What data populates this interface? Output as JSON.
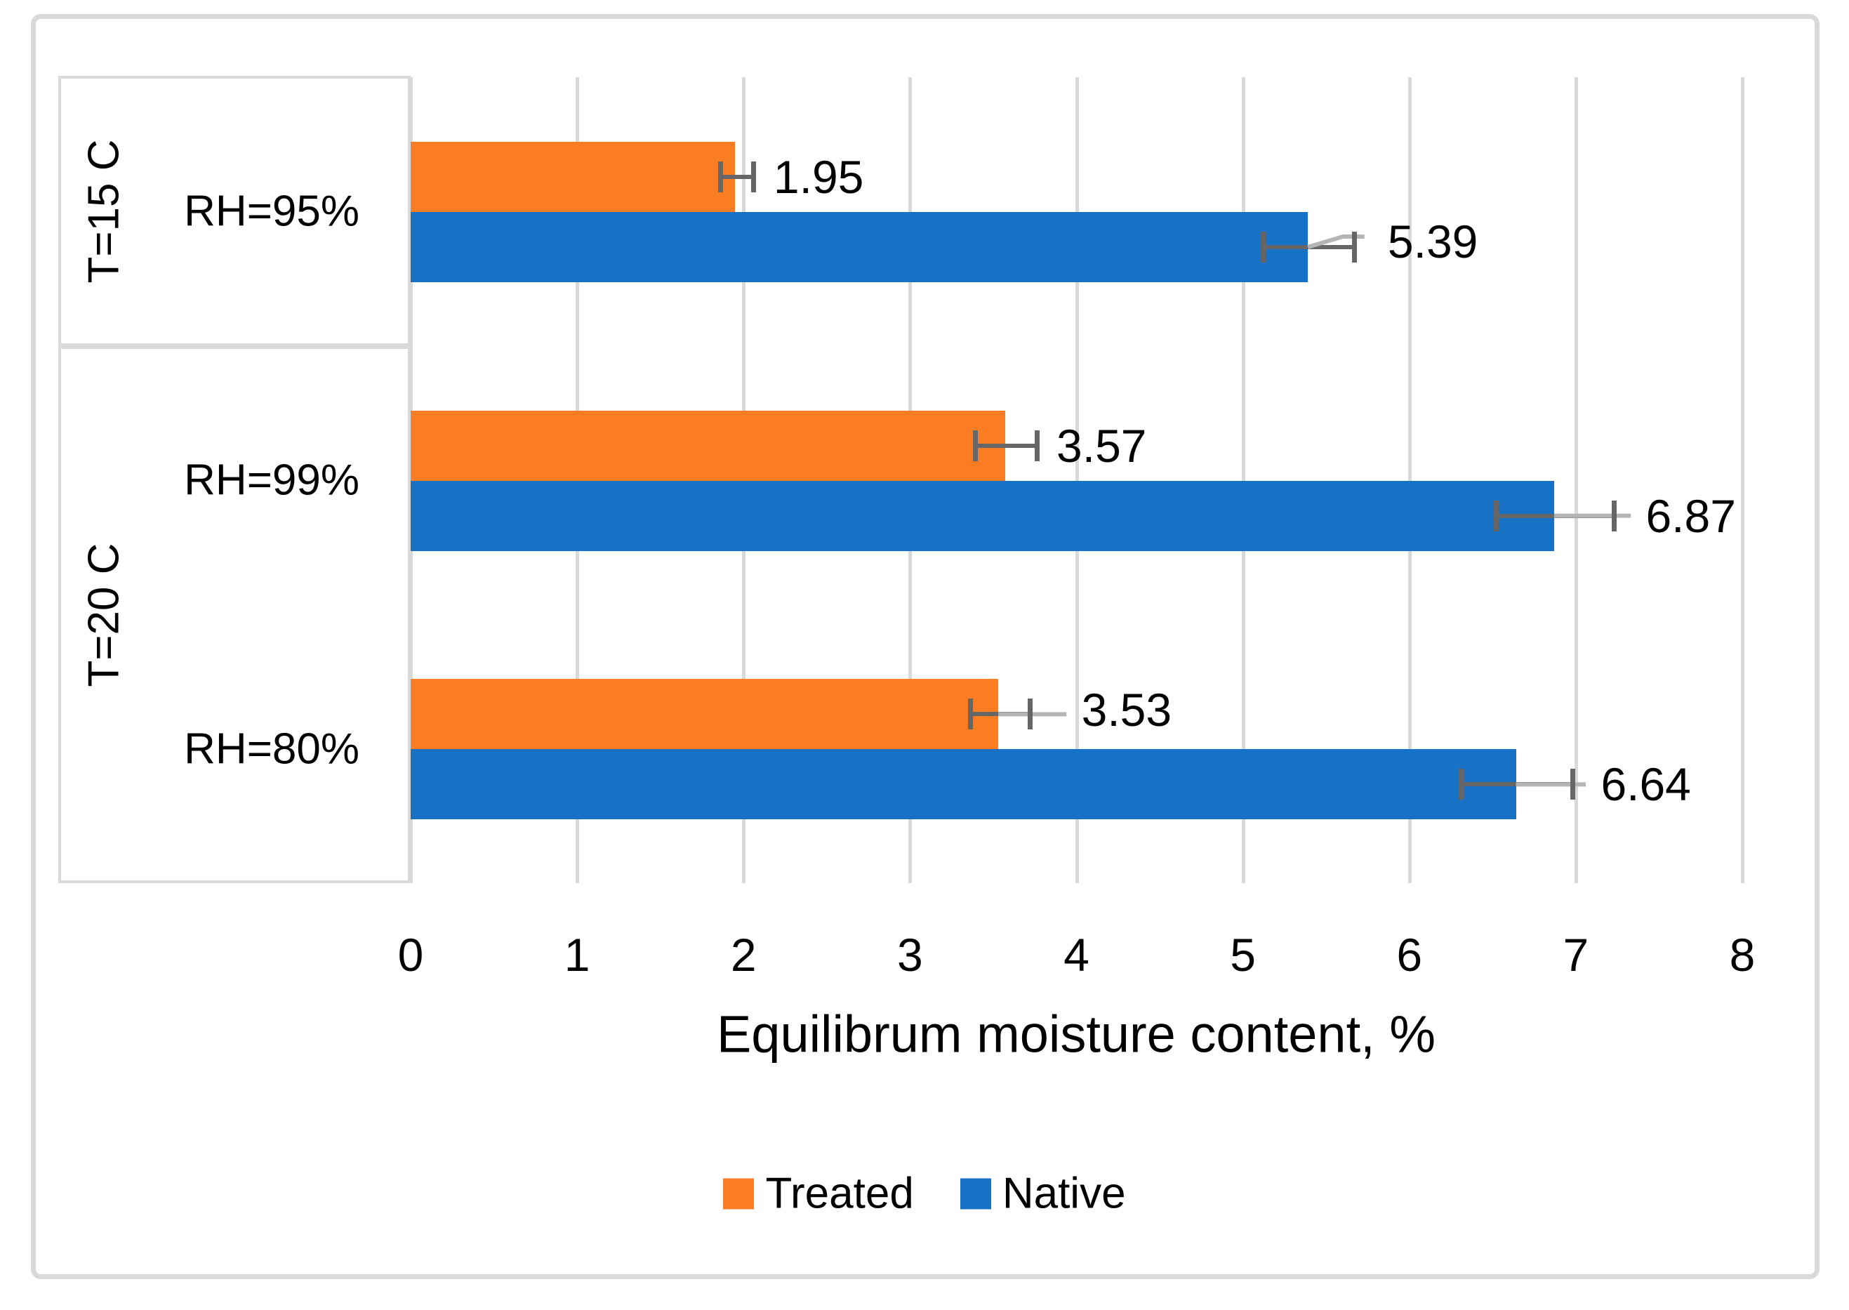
{
  "chart_data": {
    "type": "bar",
    "orientation": "horizontal-grouped",
    "title": "",
    "xlabel": "Equilibrum moisture content, %",
    "xlim": [
      0,
      8
    ],
    "xticks": [
      "0",
      "1",
      "2",
      "3",
      "4",
      "5",
      "6",
      "7",
      "8"
    ],
    "grid": "vertical-gridlines-only",
    "legend_position": "bottom-center",
    "outer_groups": [
      {
        "label": "T=15 C",
        "categories": [
          "RH=95%"
        ]
      },
      {
        "label": "T=20 C",
        "categories": [
          "RH=99%",
          "RH=80%"
        ]
      }
    ],
    "categories": [
      "RH=95%",
      "RH=99%",
      "RH=80%"
    ],
    "series": [
      {
        "name": "Treated",
        "color": "#FA7D24",
        "values": [
          1.95,
          3.57,
          3.53
        ],
        "error_low": [
          1.86,
          3.39,
          3.36
        ],
        "error_high": [
          2.06,
          3.76,
          3.72
        ]
      },
      {
        "name": "Native",
        "color": "#1772C6",
        "values": [
          5.39,
          6.87,
          6.64
        ],
        "error_low": [
          5.12,
          6.52,
          6.31
        ],
        "error_high": [
          5.67,
          7.23,
          6.98
        ]
      }
    ],
    "labels": [
      [
        "1.95",
        "3.57",
        "3.53"
      ],
      [
        "5.39",
        "6.87",
        "6.64"
      ]
    ],
    "label_layout": [
      {
        "series": 0,
        "cat": 0,
        "x": 2.18,
        "dy": 0,
        "leader": null
      },
      {
        "series": 1,
        "cat": 0,
        "x": 5.87,
        "dy": -8,
        "leader": [
          [
            5.39,
            0
          ],
          [
            5.6,
            -15
          ],
          [
            5.73,
            -15
          ]
        ]
      },
      {
        "series": 0,
        "cat": 1,
        "x": 3.88,
        "dy": 0,
        "leader": null
      },
      {
        "series": 1,
        "cat": 1,
        "x": 7.42,
        "dy": 0,
        "leader": [
          [
            6.87,
            0
          ],
          [
            7.33,
            0
          ]
        ]
      },
      {
        "series": 0,
        "cat": 2,
        "x": 4.03,
        "dy": -6,
        "leader": [
          [
            3.53,
            0
          ],
          [
            3.94,
            0
          ]
        ]
      },
      {
        "series": 1,
        "cat": 2,
        "x": 7.15,
        "dy": 0,
        "leader": [
          [
            6.64,
            0
          ],
          [
            7.06,
            0
          ]
        ]
      }
    ],
    "colors": {
      "gridline": "#D9D9D9",
      "frame": "#D9D9D9",
      "category_box": "#DADADA",
      "error_bar": "#666666",
      "leader_line": "#B5B5B5",
      "text": "#000000",
      "background": "#FFFFFF"
    }
  }
}
